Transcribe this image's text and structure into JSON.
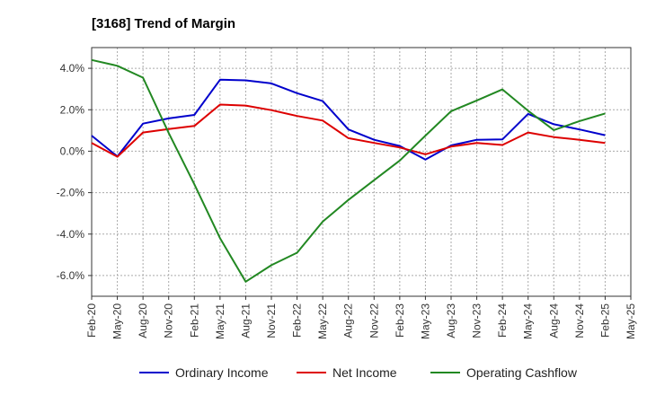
{
  "chart_data": {
    "type": "line",
    "title": "[3168]  Trend of Margin",
    "xlabel": "",
    "ylabel": "",
    "x": [
      "Feb-20",
      "May-20",
      "Aug-20",
      "Nov-20",
      "Feb-21",
      "May-21",
      "Aug-21",
      "Nov-21",
      "Feb-22",
      "May-22",
      "Aug-22",
      "Nov-22",
      "Feb-23",
      "May-23",
      "Aug-23",
      "Nov-23",
      "Feb-24",
      "May-24",
      "Aug-24",
      "Nov-24",
      "Feb-25",
      "May-25"
    ],
    "ylim": [
      -7.0,
      5.0
    ],
    "yticks": [
      4.0,
      2.0,
      0.0,
      -2.0,
      -4.0,
      -6.0
    ],
    "ytick_labels": [
      "4.0%",
      "2.0%",
      "0.0%",
      "-2.0%",
      "-4.0%",
      "-6.0%"
    ],
    "grid": true,
    "legend_position": "bottom",
    "series": [
      {
        "name": "Ordinary Income",
        "color": "#0000cc",
        "values": [
          0.75,
          -0.25,
          1.33,
          1.58,
          1.75,
          3.45,
          3.42,
          3.27,
          2.8,
          2.42,
          1.05,
          0.55,
          0.25,
          -0.4,
          0.28,
          0.55,
          0.57,
          1.8,
          1.3,
          1.05,
          0.77,
          null
        ]
      },
      {
        "name": "Net Income",
        "color": "#dd0000",
        "values": [
          0.4,
          -0.27,
          0.9,
          1.07,
          1.22,
          2.25,
          2.2,
          1.98,
          1.7,
          1.48,
          0.63,
          0.4,
          0.18,
          -0.15,
          0.22,
          0.4,
          0.3,
          0.9,
          0.68,
          0.55,
          0.4,
          null
        ]
      },
      {
        "name": "Operating Cashflow",
        "color": "#228822",
        "values": [
          4.4,
          4.12,
          3.55,
          0.88,
          -1.6,
          -4.2,
          -6.3,
          -5.5,
          -4.9,
          -3.4,
          -2.35,
          -1.4,
          -0.45,
          0.75,
          1.93,
          2.45,
          2.98,
          1.95,
          1.02,
          1.45,
          1.82,
          null
        ]
      }
    ]
  }
}
